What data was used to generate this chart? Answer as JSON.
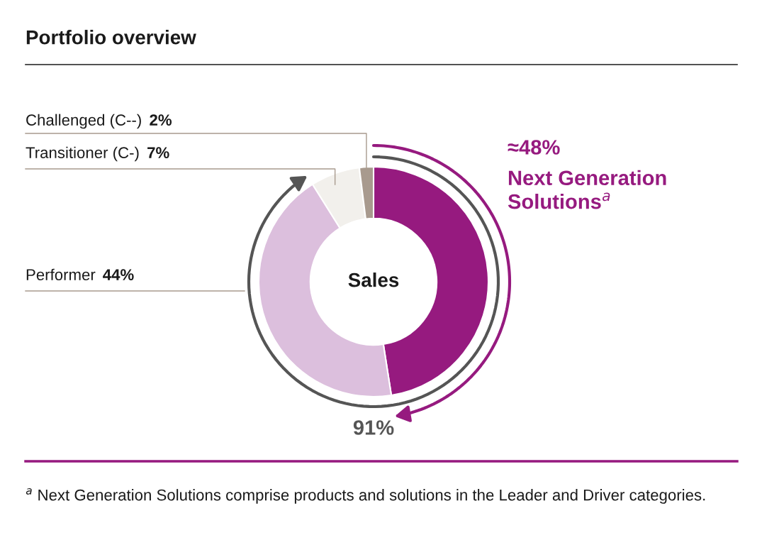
{
  "chart_data": {
    "type": "donut",
    "title": "Portfolio overview",
    "categories": [
      "Next Generation\nSolutions$^{a}$",
      "Performer",
      "Transitioner (C-)",
      "Challenged (C--)"
    ],
    "values": [
      48,
      44,
      7,
      2
    ],
    "value_labels": [
      "≈48%",
      "44%",
      "7%",
      "2%"
    ],
    "colors": [
      "#961a7f",
      "#dcbfdd",
      "#f2f0ec",
      "#a89a8e"
    ],
    "annotations": [
      "Sales",
      "91%",
      "$^{a}$ Next Generation Solutions comprise products and solutions in the Leader and Driver categories."
    ],
    "legend": false
  }
}
